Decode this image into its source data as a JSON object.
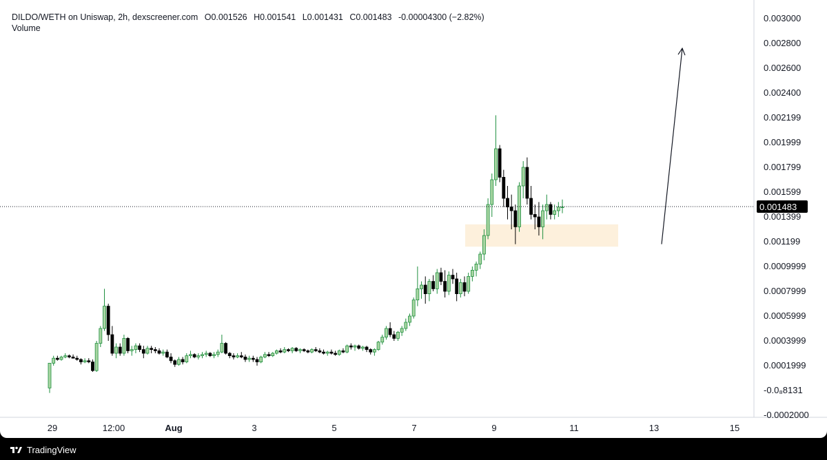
{
  "header": {
    "symbol": "DILDO/WETH on Uniswap, 2h, dexscreener.com",
    "open": "O0.001526",
    "high": "H0.001541",
    "low": "L0.001431",
    "close": "C0.001483",
    "change": "-0.00004300 (−2.82%)",
    "volume_label": "Volume"
  },
  "footer": {
    "brand": "TradingView"
  },
  "colors": {
    "up": "#1e8f3e",
    "up_fill": "#a8d5a2",
    "down": "#000000",
    "zone": "#fdf0dc",
    "price_tag": "#000000"
  },
  "chart_data": {
    "type": "candlestick",
    "x_tick_labels": [
      "29",
      "12:00",
      "Aug",
      "3",
      "5",
      "7",
      "9",
      "11",
      "13",
      "15"
    ],
    "y_tick_labels": [
      "0.003000",
      "0.002800",
      "0.002600",
      "0.002400",
      "0.002199",
      "0.001999",
      "0.001799",
      "0.001599",
      "0.001399",
      "0.001199",
      "0.0009999",
      "0.0007999",
      "0.0005999",
      "0.0003999",
      "0.0001999",
      "-0.0₈8131",
      "-0.0002000"
    ],
    "y_ticks": [
      0.003,
      0.0028,
      0.0026,
      0.0024,
      0.002199,
      0.001999,
      0.001799,
      0.001599,
      0.001399,
      0.001199,
      0.0009999,
      0.0007999,
      0.0005999,
      0.0003999,
      0.0001999,
      0.0,
      -0.0002
    ],
    "ylim": [
      -0.0002,
      0.003
    ],
    "last_price": 0.001483,
    "last_price_label": "0.001483",
    "support_zone": {
      "low": 0.00116,
      "high": 0.00134
    },
    "projection_arrow": {
      "from": 0.00118,
      "to": 0.00276
    },
    "candles": [
      [
        2e-05,
        0.00022,
        -2e-05,
        0.00022
      ],
      [
        0.00022,
        0.00028,
        0.0002,
        0.00026
      ],
      [
        0.00026,
        0.00028,
        0.00024,
        0.00025
      ],
      [
        0.00025,
        0.00028,
        0.00024,
        0.00027
      ],
      [
        0.00027,
        0.0003,
        0.00026,
        0.00028
      ],
      [
        0.00028,
        0.00029,
        0.00026,
        0.00027
      ],
      [
        0.00027,
        0.00029,
        0.00026,
        0.00026
      ],
      [
        0.00026,
        0.00028,
        0.00024,
        0.00025
      ],
      [
        0.00025,
        0.00026,
        0.00021,
        0.00023
      ],
      [
        0.00023,
        0.00026,
        0.00022,
        0.00024
      ],
      [
        0.00024,
        0.00026,
        0.00022,
        0.00023
      ],
      [
        0.00023,
        0.00025,
        0.00015,
        0.00016
      ],
      [
        0.00016,
        0.0004,
        0.00015,
        0.00038
      ],
      [
        0.00038,
        0.00052,
        0.00035,
        0.0005
      ],
      [
        0.0005,
        0.00082,
        0.00048,
        0.00068
      ],
      [
        0.00068,
        0.0007,
        0.0004,
        0.00045
      ],
      [
        0.00045,
        0.00052,
        0.00028,
        0.0003
      ],
      [
        0.0003,
        0.00038,
        0.00026,
        0.00035
      ],
      [
        0.00035,
        0.00038,
        0.00028,
        0.0003
      ],
      [
        0.0003,
        0.00045,
        0.00028,
        0.00042
      ],
      [
        0.00042,
        0.00043,
        0.0003,
        0.00032
      ],
      [
        0.00032,
        0.00036,
        0.00028,
        0.00033
      ],
      [
        0.00033,
        0.00038,
        0.0003,
        0.00036
      ],
      [
        0.00036,
        0.00038,
        0.00031,
        0.00033
      ],
      [
        0.00033,
        0.00036,
        0.00026,
        0.0003
      ],
      [
        0.0003,
        0.00036,
        0.00029,
        0.00034
      ],
      [
        0.00034,
        0.00036,
        0.0003,
        0.00033
      ],
      [
        0.00033,
        0.00035,
        0.0003,
        0.00032
      ],
      [
        0.00032,
        0.00034,
        0.00029,
        0.0003
      ],
      [
        0.0003,
        0.00033,
        0.00028,
        0.00031
      ],
      [
        0.00031,
        0.00033,
        0.00026,
        0.00027
      ],
      [
        0.00027,
        0.0003,
        0.00022,
        0.00024
      ],
      [
        0.00024,
        0.00025,
        0.00019,
        0.00021
      ],
      [
        0.00021,
        0.00027,
        0.0002,
        0.00025
      ],
      [
        0.00025,
        0.00027,
        0.00021,
        0.00023
      ],
      [
        0.00023,
        0.0003,
        0.00022,
        0.00028
      ],
      [
        0.00028,
        0.00032,
        0.00026,
        0.00029
      ],
      [
        0.00029,
        0.0003,
        0.00026,
        0.00027
      ],
      [
        0.00027,
        0.0003,
        0.00025,
        0.00028
      ],
      [
        0.00028,
        0.00031,
        0.00026,
        0.00029
      ],
      [
        0.00029,
        0.00032,
        0.00027,
        0.0003
      ],
      [
        0.0003,
        0.00031,
        0.00027,
        0.00028
      ],
      [
        0.00028,
        0.00031,
        0.00026,
        0.00029
      ],
      [
        0.00029,
        0.00033,
        0.00027,
        0.00031
      ],
      [
        0.00031,
        0.00045,
        0.0003,
        0.00038
      ],
      [
        0.00038,
        0.00039,
        0.00029,
        0.0003
      ],
      [
        0.0003,
        0.00031,
        0.00026,
        0.00028
      ],
      [
        0.00028,
        0.0003,
        0.00025,
        0.00027
      ],
      [
        0.00027,
        0.0003,
        0.00026,
        0.00028
      ],
      [
        0.00028,
        0.00031,
        0.00026,
        0.00027
      ],
      [
        0.00027,
        0.00029,
        0.00023,
        0.00025
      ],
      [
        0.00025,
        0.00028,
        0.00023,
        0.00026
      ],
      [
        0.00026,
        0.00028,
        0.00023,
        0.00025
      ],
      [
        0.00025,
        0.00027,
        0.0002,
        0.00023
      ],
      [
        0.00023,
        0.00028,
        0.00022,
        0.00027
      ],
      [
        0.00027,
        0.00031,
        0.00026,
        0.00029
      ],
      [
        0.00029,
        0.00031,
        0.00027,
        0.00028
      ],
      [
        0.00028,
        0.00031,
        0.00027,
        0.0003
      ],
      [
        0.0003,
        0.00033,
        0.00029,
        0.00032
      ],
      [
        0.00032,
        0.00034,
        0.0003,
        0.00031
      ],
      [
        0.00031,
        0.00035,
        0.0003,
        0.00033
      ],
      [
        0.00033,
        0.00034,
        0.00031,
        0.00032
      ],
      [
        0.00032,
        0.00035,
        0.0003,
        0.00034
      ],
      [
        0.00034,
        0.00035,
        0.00031,
        0.00032
      ],
      [
        0.00032,
        0.00034,
        0.0003,
        0.00033
      ],
      [
        0.00033,
        0.00034,
        0.00031,
        0.00032
      ],
      [
        0.00032,
        0.00033,
        0.0003,
        0.00031
      ],
      [
        0.00031,
        0.00034,
        0.0003,
        0.00033
      ],
      [
        0.00033,
        0.00035,
        0.00031,
        0.00032
      ],
      [
        0.00032,
        0.00034,
        0.0003,
        0.00031
      ],
      [
        0.00031,
        0.00033,
        0.00029,
        0.0003
      ],
      [
        0.0003,
        0.00032,
        0.00028,
        0.00031
      ],
      [
        0.00031,
        0.00033,
        0.00029,
        0.0003
      ],
      [
        0.0003,
        0.00032,
        0.00028,
        0.00029
      ],
      [
        0.00029,
        0.00033,
        0.00028,
        0.00032
      ],
      [
        0.00032,
        0.00034,
        0.0003,
        0.00031
      ],
      [
        0.00031,
        0.00037,
        0.0003,
        0.00036
      ],
      [
        0.00036,
        0.00038,
        0.00033,
        0.00035
      ],
      [
        0.00035,
        0.00037,
        0.00032,
        0.00036
      ],
      [
        0.00036,
        0.00037,
        0.00033,
        0.00034
      ],
      [
        0.00034,
        0.00036,
        0.00032,
        0.00035
      ],
      [
        0.00035,
        0.00036,
        0.00031,
        0.00033
      ],
      [
        0.00033,
        0.00034,
        0.00029,
        0.00031
      ],
      [
        0.00031,
        0.00034,
        0.00028,
        0.00033
      ],
      [
        0.00033,
        0.0004,
        0.00032,
        0.00039
      ],
      [
        0.00039,
        0.00045,
        0.00037,
        0.00043
      ],
      [
        0.00043,
        0.00052,
        0.00041,
        0.0005
      ],
      [
        0.0005,
        0.00055,
        0.00043,
        0.00045
      ],
      [
        0.00045,
        0.00048,
        0.0004,
        0.00042
      ],
      [
        0.00042,
        0.00048,
        0.0004,
        0.00047
      ],
      [
        0.00047,
        0.00052,
        0.00044,
        0.0005
      ],
      [
        0.0005,
        0.00058,
        0.00048,
        0.00055
      ],
      [
        0.00055,
        0.00062,
        0.00052,
        0.0006
      ],
      [
        0.0006,
        0.00075,
        0.00058,
        0.00073
      ],
      [
        0.00073,
        0.001,
        0.00068,
        0.00082
      ],
      [
        0.00082,
        0.00088,
        0.00074,
        0.00085
      ],
      [
        0.00085,
        0.00092,
        0.0007,
        0.00078
      ],
      [
        0.00078,
        0.0009,
        0.00072,
        0.00088
      ],
      [
        0.00088,
        0.00093,
        0.0008,
        0.00082
      ],
      [
        0.00082,
        0.00098,
        0.00078,
        0.00095
      ],
      [
        0.00095,
        0.00099,
        0.00085,
        0.00088
      ],
      [
        0.00088,
        0.00097,
        0.00075,
        0.0008
      ],
      [
        0.0008,
        0.00096,
        0.00077,
        0.00093
      ],
      [
        0.00093,
        0.00098,
        0.00086,
        0.0009
      ],
      [
        0.0009,
        0.00095,
        0.00072,
        0.00078
      ],
      [
        0.00078,
        0.0009,
        0.00075,
        0.00087
      ],
      [
        0.00087,
        0.00092,
        0.00076,
        0.0008
      ],
      [
        0.0008,
        0.00095,
        0.00078,
        0.00092
      ],
      [
        0.00092,
        0.001,
        0.00088,
        0.00097
      ],
      [
        0.00097,
        0.00104,
        0.00092,
        0.00102
      ],
      [
        0.00102,
        0.00112,
        0.00098,
        0.0011
      ],
      [
        0.0011,
        0.0013,
        0.00105,
        0.00125
      ],
      [
        0.00125,
        0.00155,
        0.00122,
        0.0015
      ],
      [
        0.0015,
        0.00175,
        0.0014,
        0.0017
      ],
      [
        0.0017,
        0.00222,
        0.00165,
        0.00195
      ],
      [
        0.00195,
        0.00198,
        0.00168,
        0.00172
      ],
      [
        0.00172,
        0.00178,
        0.00148,
        0.00155
      ],
      [
        0.00155,
        0.00165,
        0.00138,
        0.00148
      ],
      [
        0.00148,
        0.00158,
        0.0013,
        0.00145
      ],
      [
        0.00145,
        0.0015,
        0.00118,
        0.00132
      ],
      [
        0.00132,
        0.00168,
        0.00128,
        0.00165
      ],
      [
        0.00165,
        0.00185,
        0.00155,
        0.0018
      ],
      [
        0.0018,
        0.00188,
        0.0015,
        0.00155
      ],
      [
        0.00155,
        0.00165,
        0.00138,
        0.00142
      ],
      [
        0.00142,
        0.0015,
        0.0013,
        0.0014
      ],
      [
        0.0014,
        0.00152,
        0.00125,
        0.00132
      ],
      [
        0.00132,
        0.0015,
        0.00122,
        0.00145
      ],
      [
        0.00145,
        0.00158,
        0.00138,
        0.0015
      ],
      [
        0.0015,
        0.00152,
        0.00138,
        0.00142
      ],
      [
        0.00142,
        0.0015,
        0.00138,
        0.00145
      ],
      [
        0.00145,
        0.00152,
        0.0014,
        0.00148
      ],
      [
        0.00148,
        0.00154,
        0.00143,
        0.00148
      ]
    ]
  }
}
